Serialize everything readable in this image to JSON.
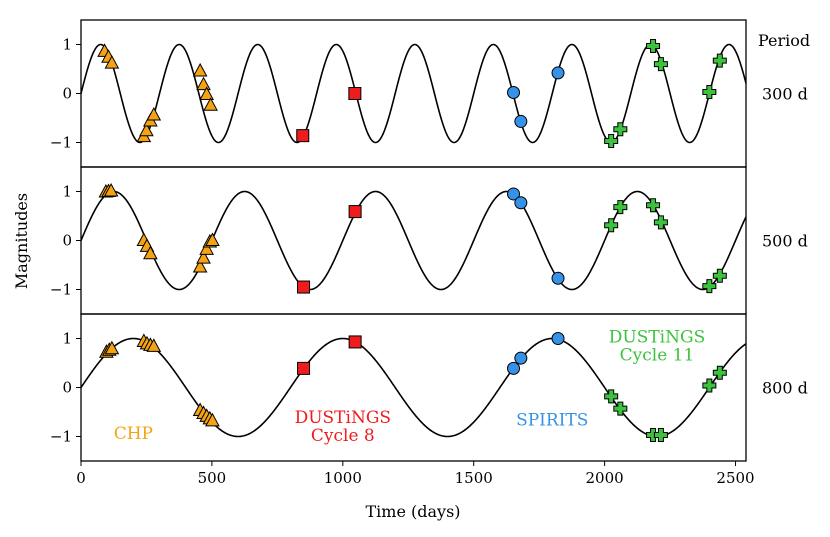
{
  "chart_data": {
    "type": "scatter",
    "xlabel": "Time (days)",
    "ylabel": "Magnitudes",
    "xlim": [
      0,
      2540
    ],
    "ylim": [
      -1.5,
      1.5
    ],
    "xticks": [
      0,
      500,
      1000,
      1500,
      2000,
      2500
    ],
    "yticks": [
      -1,
      0,
      1
    ],
    "right_header": "Period",
    "legend": "none",
    "panels": [
      {
        "period_days": 300,
        "period_label": "300 d",
        "curve": {
          "amplitude": 1,
          "phase_offset_days": 0
        },
        "series": [
          {
            "name": "CHP",
            "marker": "triangle",
            "color": "#f5a313",
            "x": [
              90,
              105,
              118,
              240,
              250,
              265,
              278,
              455,
              468,
              480,
              495
            ],
            "y": [
              0.86,
              0.74,
              0.62,
              -0.88,
              -0.76,
              -0.56,
              -0.44,
              0.46,
              0.18,
              -0.02,
              -0.24
            ]
          },
          {
            "name": "DUSTiNGS Cycle 8",
            "marker": "square",
            "color": "#ee1c1c",
            "x": [
              847,
              1046
            ],
            "y": [
              -0.86,
              0.0
            ]
          },
          {
            "name": "SPIRITS",
            "marker": "circle",
            "color": "#3592e8",
            "x": [
              1652,
              1680,
              1822
            ],
            "y": [
              0.02,
              -0.57,
              0.42
            ]
          },
          {
            "name": "DUSTiNGS Cycle 11",
            "marker": "plus",
            "color": "#3dc23d",
            "x": [
              2025,
              2060,
              2185,
              2215,
              2400,
              2440
            ],
            "y": [
              -0.97,
              -0.73,
              0.97,
              0.6,
              0.03,
              0.67
            ]
          }
        ]
      },
      {
        "period_days": 500,
        "period_label": "500 d",
        "curve": {
          "amplitude": 1,
          "phase_offset_days": 0
        },
        "series": [
          {
            "name": "CHP",
            "marker": "triangle",
            "color": "#f5a313",
            "x": [
              95,
              105,
              115,
              240,
              252,
              265,
              455,
              468,
              480,
              492,
              502
            ],
            "y": [
              0.99,
              1.0,
              1.01,
              0.0,
              -0.12,
              -0.27,
              -0.54,
              -0.36,
              -0.18,
              -0.03,
              0.0
            ]
          },
          {
            "name": "DUSTiNGS Cycle 8",
            "marker": "square",
            "color": "#ee1c1c",
            "x": [
              850,
              1047
            ],
            "y": [
              -0.95,
              0.59
            ]
          },
          {
            "name": "SPIRITS",
            "marker": "circle",
            "color": "#3592e8",
            "x": [
              1652,
              1680,
              1822
            ],
            "y": [
              0.95,
              0.77,
              -0.77
            ]
          },
          {
            "name": "DUSTiNGS Cycle 11",
            "marker": "plus",
            "color": "#3dc23d",
            "x": [
              2025,
              2060,
              2185,
              2215,
              2400,
              2440
            ],
            "y": [
              0.31,
              0.68,
              0.72,
              0.37,
              -0.93,
              -0.72
            ]
          }
        ]
      },
      {
        "period_days": 800,
        "period_label": "800 d",
        "curve": {
          "amplitude": 1,
          "phase_offset_days": 0
        },
        "series": [
          {
            "name": "CHP",
            "marker": "triangle",
            "color": "#f5a313",
            "x": [
              97,
              108,
              118,
              240,
              252,
              265,
              278,
              455,
              468,
              480,
              492,
              502
            ],
            "y": [
              0.72,
              0.76,
              0.79,
              0.94,
              0.89,
              0.86,
              0.84,
              -0.47,
              -0.53,
              -0.59,
              -0.64,
              -0.68
            ]
          },
          {
            "name": "DUSTiNGS Cycle 8",
            "marker": "square",
            "color": "#ee1c1c",
            "x": [
              850,
              1047
            ],
            "y": [
              0.39,
              0.93
            ]
          },
          {
            "name": "SPIRITS",
            "marker": "circle",
            "color": "#3592e8",
            "x": [
              1652,
              1680,
              1822
            ],
            "y": [
              0.39,
              0.6,
              1.0
            ]
          },
          {
            "name": "DUSTiNGS Cycle 11",
            "marker": "plus",
            "color": "#3dc23d",
            "x": [
              2025,
              2060,
              2185,
              2215,
              2400,
              2440
            ],
            "y": [
              -0.18,
              -0.43,
              -0.97,
              -0.97,
              0.04,
              0.3
            ]
          }
        ]
      }
    ],
    "annotations": [
      {
        "lines": [
          "CHP"
        ],
        "color": "#f5a313",
        "panel": 2,
        "x": 200,
        "y": -0.95
      },
      {
        "lines": [
          "DUSTiNGS",
          "Cycle 8"
        ],
        "color": "#ee1c1c",
        "panel": 2,
        "x": 1000,
        "y": -0.62
      },
      {
        "lines": [
          "SPIRITS"
        ],
        "color": "#3592e8",
        "panel": 2,
        "x": 1800,
        "y": -0.67
      },
      {
        "lines": [
          "DUSTiNGS",
          "Cycle 11"
        ],
        "color": "#3dc23d",
        "panel": 2,
        "x": 2200,
        "y": 1.02
      }
    ]
  }
}
